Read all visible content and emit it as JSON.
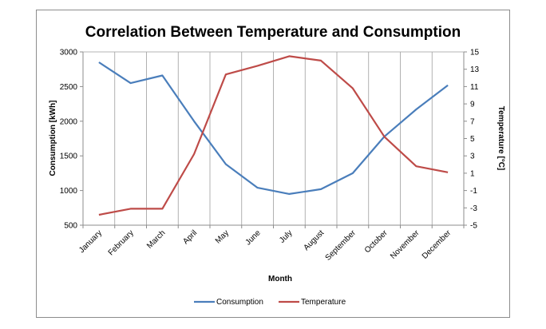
{
  "chart_data": {
    "type": "line",
    "title": "Correlation Between Temperature and Consumption",
    "xlabel": "Month",
    "ylabel": "Consumption [kWh]",
    "y2label": "Temperature [°C]",
    "categories": [
      "January",
      "February",
      "March",
      "April",
      "May",
      "June",
      "July",
      "August",
      "September",
      "October",
      "November",
      "December"
    ],
    "ylim": [
      500,
      3000
    ],
    "yticks": [
      500,
      1000,
      1500,
      2000,
      2500,
      3000
    ],
    "y2lim": [
      -5,
      15
    ],
    "y2ticks": [
      -5,
      -3,
      -1,
      1,
      3,
      5,
      7,
      9,
      11,
      13,
      15
    ],
    "grid": "vertical",
    "legend_position": "bottom",
    "series": [
      {
        "name": "Consumption",
        "axis": "left",
        "color": "#4a7ebb",
        "values": [
          2850,
          2550,
          2660,
          2000,
          1380,
          1040,
          950,
          1020,
          1250,
          1780,
          2170,
          2520
        ]
      },
      {
        "name": "Temperature",
        "axis": "right",
        "color": "#be4b48",
        "values": [
          -3.8,
          -3.1,
          -3.1,
          3.2,
          12.4,
          13.4,
          14.5,
          14.0,
          10.8,
          5.2,
          1.8,
          1.1
        ]
      }
    ]
  }
}
